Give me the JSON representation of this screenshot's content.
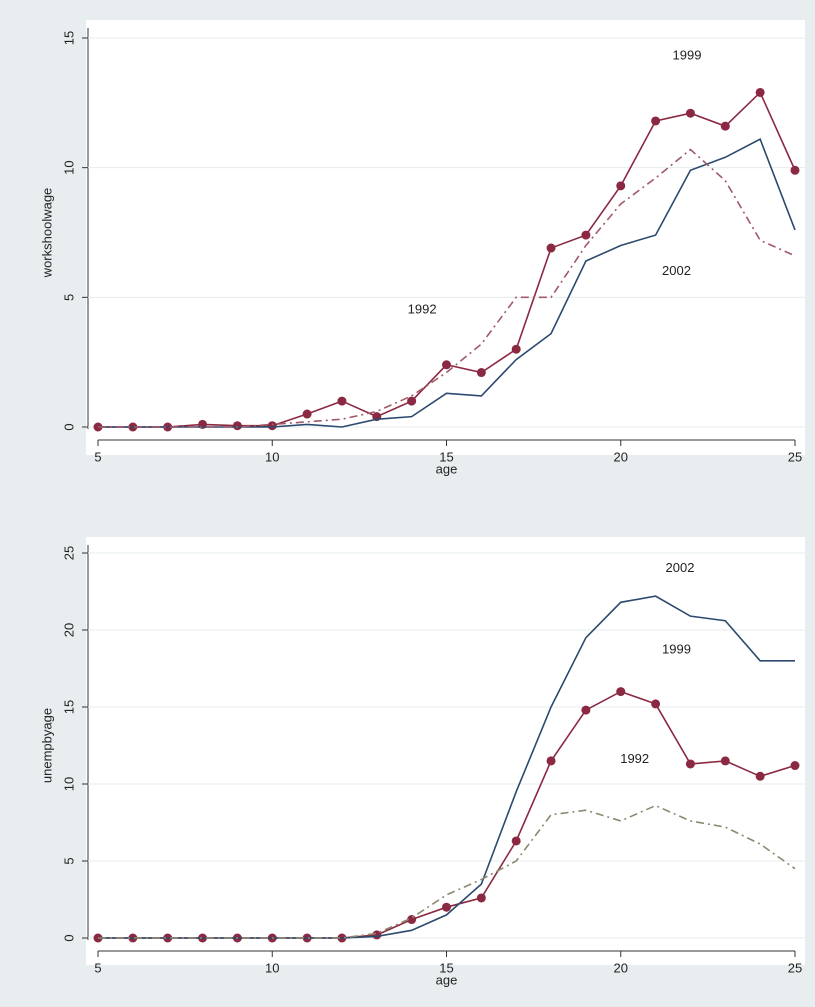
{
  "chart_data": [
    {
      "type": "line",
      "ylabel": "workshoolwage",
      "xlabel": "age",
      "x": [
        5,
        6,
        7,
        8,
        9,
        10,
        11,
        12,
        13,
        14,
        15,
        16,
        17,
        18,
        19,
        20,
        21,
        22,
        23,
        24,
        25
      ],
      "xlim": [
        5,
        25
      ],
      "xticks": [
        5,
        10,
        15,
        20,
        25
      ],
      "ylim": [
        0,
        15
      ],
      "yticks": [
        0,
        5,
        10,
        15
      ],
      "grid": true,
      "series": [
        {
          "name": "1999",
          "color": "#8b2942",
          "marker": "circle",
          "line_style": "solid",
          "values": [
            0,
            0,
            0,
            0.1,
            0.05,
            0.05,
            0.5,
            1.0,
            0.4,
            1.0,
            2.4,
            2.1,
            3.0,
            6.9,
            7.4,
            9.3,
            11.8,
            12.1,
            11.6,
            12.9,
            9.9
          ]
        },
        {
          "name": "2002",
          "color": "#2c4a6e",
          "line_style": "solid",
          "values": [
            0,
            0,
            0,
            0,
            0,
            0,
            0.1,
            0,
            0.3,
            0.4,
            1.3,
            1.2,
            2.6,
            3.6,
            6.4,
            7.0,
            7.4,
            9.9,
            10.4,
            11.1,
            7.6
          ]
        },
        {
          "name": "1992",
          "color": "#a05a68",
          "line_style": "dash-dot",
          "values": [
            0,
            0,
            0,
            0,
            0,
            0.1,
            0.2,
            0.3,
            0.6,
            1.2,
            2.1,
            3.2,
            5.0,
            5.0,
            7.0,
            8.6,
            9.6,
            10.7,
            9.5,
            7.2,
            6.6
          ]
        }
      ],
      "annotations": [
        {
          "text": "1999",
          "x": 21.9,
          "y": 14.3
        },
        {
          "text": "2002",
          "x": 21.6,
          "y": 6.0
        },
        {
          "text": "1992",
          "x": 14.3,
          "y": 4.5
        }
      ]
    },
    {
      "type": "line",
      "ylabel": "unempbyage",
      "xlabel": "age",
      "x": [
        5,
        6,
        7,
        8,
        9,
        10,
        11,
        12,
        13,
        14,
        15,
        16,
        17,
        18,
        19,
        20,
        21,
        22,
        23,
        24,
        25
      ],
      "xlim": [
        5,
        25
      ],
      "xticks": [
        5,
        10,
        15,
        20,
        25
      ],
      "ylim": [
        0,
        25
      ],
      "yticks": [
        0,
        5,
        10,
        15,
        20,
        25
      ],
      "grid": true,
      "series": [
        {
          "name": "1999",
          "color": "#8b2942",
          "marker": "circle",
          "line_style": "solid",
          "values": [
            0,
            0,
            0,
            0,
            0,
            0,
            0,
            0,
            0.2,
            1.2,
            2.0,
            2.6,
            6.3,
            11.5,
            14.8,
            16.0,
            15.2,
            11.3,
            11.5,
            10.5,
            11.2
          ]
        },
        {
          "name": "2002",
          "color": "#2c4a6e",
          "line_style": "solid",
          "values": [
            0,
            0,
            0,
            0,
            0,
            0,
            0,
            0,
            0.1,
            0.5,
            1.5,
            3.5,
            9.5,
            15.0,
            19.5,
            21.8,
            22.2,
            20.9,
            20.6,
            18.0,
            18.0
          ]
        },
        {
          "name": "1992",
          "color": "#8c8a70",
          "line_style": "dash-dot",
          "values": [
            0,
            0,
            0,
            0,
            0,
            0,
            0,
            0,
            0.3,
            1.3,
            2.8,
            3.8,
            5.0,
            8.0,
            8.3,
            7.6,
            8.6,
            7.6,
            7.2,
            6.1,
            4.5
          ]
        }
      ],
      "annotations": [
        {
          "text": "2002",
          "x": 21.7,
          "y": 24.0
        },
        {
          "text": "1999",
          "x": 21.6,
          "y": 18.7
        },
        {
          "text": "1992",
          "x": 20.4,
          "y": 11.6
        }
      ]
    }
  ]
}
